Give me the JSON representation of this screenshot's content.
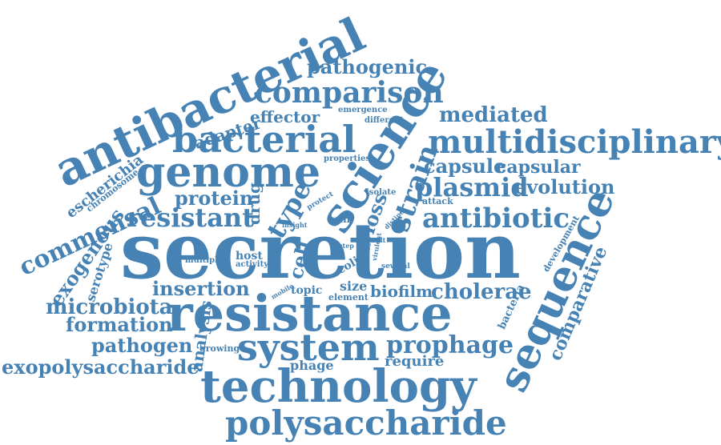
{
  "color": "#4682b4",
  "words": [
    "antibacterial",
    "pathogenic",
    "comparison",
    "adapter",
    "effector",
    "emergence",
    "different",
    "mediated",
    "bacterial",
    "science",
    "multidisciplinary",
    "escherichia",
    "chromosome",
    "genome",
    "properties",
    "capsule",
    "capsular",
    "strain",
    "plasmid",
    "evolution",
    "protein",
    "drug",
    "protect",
    "isolate",
    "commensal",
    "type",
    "attack",
    "resistant",
    "loss",
    "antibiotic",
    "wall",
    "insight",
    "exogenous",
    "serotype",
    "secretion",
    "result",
    "distinct",
    "development",
    "sequence",
    "novel",
    "know",
    "step",
    "virulent",
    "multiple",
    "host",
    "activity",
    "cell",
    "coli",
    "several",
    "comparative",
    "mobile",
    "topic",
    "size",
    "element",
    "biofilm",
    "cholerae",
    "insertion",
    "microbiota",
    "resistance",
    "bacteria",
    "formation",
    "analysis",
    "system",
    "pathogen",
    "growing",
    "prophage",
    "require",
    "exopolysaccharide",
    "phage",
    "technology",
    "polysaccharide"
  ]
}
